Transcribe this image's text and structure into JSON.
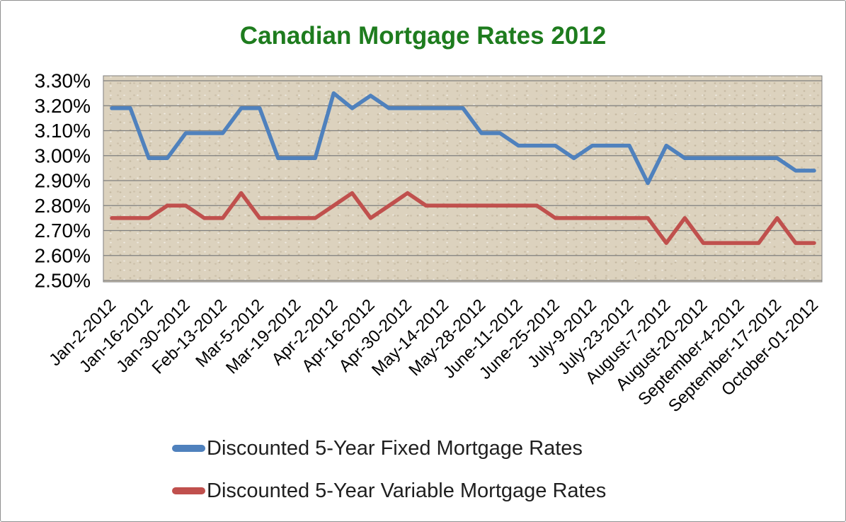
{
  "title": {
    "text": "Canadian Mortgage Rates 2012",
    "color": "#1E7C1E"
  },
  "legend": {
    "items": [
      {
        "label": "Discounted 5-Year Fixed Mortgage Rates",
        "color": "#4F81BD"
      },
      {
        "label": "Discounted 5-Year Variable Mortgage Rates",
        "color": "#C0504D"
      }
    ]
  },
  "chart_data": {
    "type": "line",
    "title": "Canadian Mortgage Rates 2012",
    "ylim": [
      2.5,
      3.3
    ],
    "y_step": 0.1,
    "y_tick_labels": [
      "3.30%",
      "3.20%",
      "3.10%",
      "3.00%",
      "2.90%",
      "2.80%",
      "2.70%",
      "2.60%",
      "2.50%"
    ],
    "x_tick_labels": [
      "Jan-2-2012",
      "Jan-16-2012",
      "Jan-30-2012",
      "Feb-13-2012",
      "Mar-5-2012",
      "Mar-19-2012",
      "Apr-2-2012",
      "Apr-16-2012",
      "Apr-30-2012",
      "May-14-2012",
      "May-28-2012",
      "June-11-2012",
      "June-25-2012",
      "July-9-2012",
      "July-23-2012",
      "August-7-2012",
      "August-20-2012",
      "September-4-2012",
      "September-17-2012",
      "October-01-2012"
    ],
    "x_tick_point_indices": [
      0,
      2,
      4,
      6,
      8,
      10,
      12,
      14,
      16,
      18,
      20,
      22,
      24,
      26,
      28,
      30,
      32,
      34,
      36,
      38
    ],
    "n_points": 39,
    "grid": "horizontal",
    "gridline_color": "#7F7F7F",
    "plot_bg_color": "#DCD2BE",
    "legend_position": "bottom-left",
    "series": [
      {
        "name": "Discounted 5-Year Fixed Mortgage Rates",
        "color": "#4F81BD",
        "values": [
          3.19,
          3.19,
          2.99,
          2.99,
          3.09,
          3.09,
          3.09,
          3.19,
          3.19,
          2.99,
          2.99,
          2.99,
          3.25,
          3.19,
          3.24,
          3.19,
          3.19,
          3.19,
          3.19,
          3.19,
          3.09,
          3.09,
          3.04,
          3.04,
          3.04,
          2.99,
          3.04,
          3.04,
          3.04,
          2.89,
          3.04,
          2.99,
          2.99,
          2.99,
          2.99,
          2.99,
          2.99,
          2.94,
          2.94
        ]
      },
      {
        "name": "Discounted 5-Year Variable Mortgage Rates",
        "color": "#C0504D",
        "values": [
          2.75,
          2.75,
          2.75,
          2.8,
          2.8,
          2.75,
          2.75,
          2.85,
          2.75,
          2.75,
          2.75,
          2.75,
          2.8,
          2.85,
          2.75,
          2.8,
          2.85,
          2.8,
          2.8,
          2.8,
          2.8,
          2.8,
          2.8,
          2.8,
          2.75,
          2.75,
          2.75,
          2.75,
          2.75,
          2.75,
          2.65,
          2.75,
          2.65,
          2.65,
          2.65,
          2.65,
          2.75,
          2.65,
          2.65
        ]
      }
    ]
  }
}
